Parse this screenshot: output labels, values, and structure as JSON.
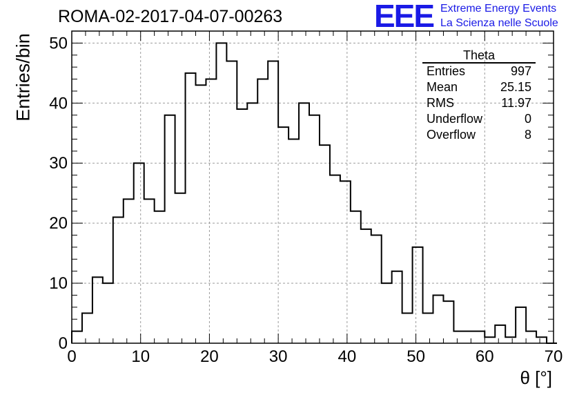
{
  "title": "ROMA-02-2017-04-07-00263",
  "logo": {
    "mark": "EEE",
    "line1": "Extreme Energy Events",
    "line2": "La Scienza nelle Scuole",
    "color": "#1a1ae6"
  },
  "stats": {
    "title": "Theta",
    "rows": [
      {
        "label": "Entries",
        "value": "997"
      },
      {
        "label": "Mean",
        "value": "25.15"
      },
      {
        "label": "RMS",
        "value": "11.97"
      },
      {
        "label": "Underflow",
        "value": "0"
      },
      {
        "label": "Overflow",
        "value": "8"
      }
    ]
  },
  "chart_data": {
    "type": "histogram",
    "title": "ROMA-02-2017-04-07-00263",
    "xlabel": "θ [°]",
    "ylabel": "Entries/bin",
    "xlim": [
      0,
      70
    ],
    "ylim": [
      0,
      52
    ],
    "bin_width": 1.5,
    "x_ticks": [
      0,
      10,
      20,
      30,
      40,
      50,
      60,
      70
    ],
    "y_ticks": [
      0,
      10,
      20,
      30,
      40,
      50
    ],
    "grid": true,
    "values": [
      2,
      5,
      11,
      10,
      21,
      24,
      30,
      24,
      22,
      38,
      25,
      45,
      43,
      44,
      50,
      47,
      39,
      40,
      44,
      47,
      36,
      34,
      40,
      38,
      33,
      28,
      27,
      22,
      19,
      18,
      10,
      12,
      5,
      16,
      5,
      8,
      7,
      2,
      2,
      2,
      1,
      3,
      1,
      6,
      2,
      1,
      0
    ]
  }
}
